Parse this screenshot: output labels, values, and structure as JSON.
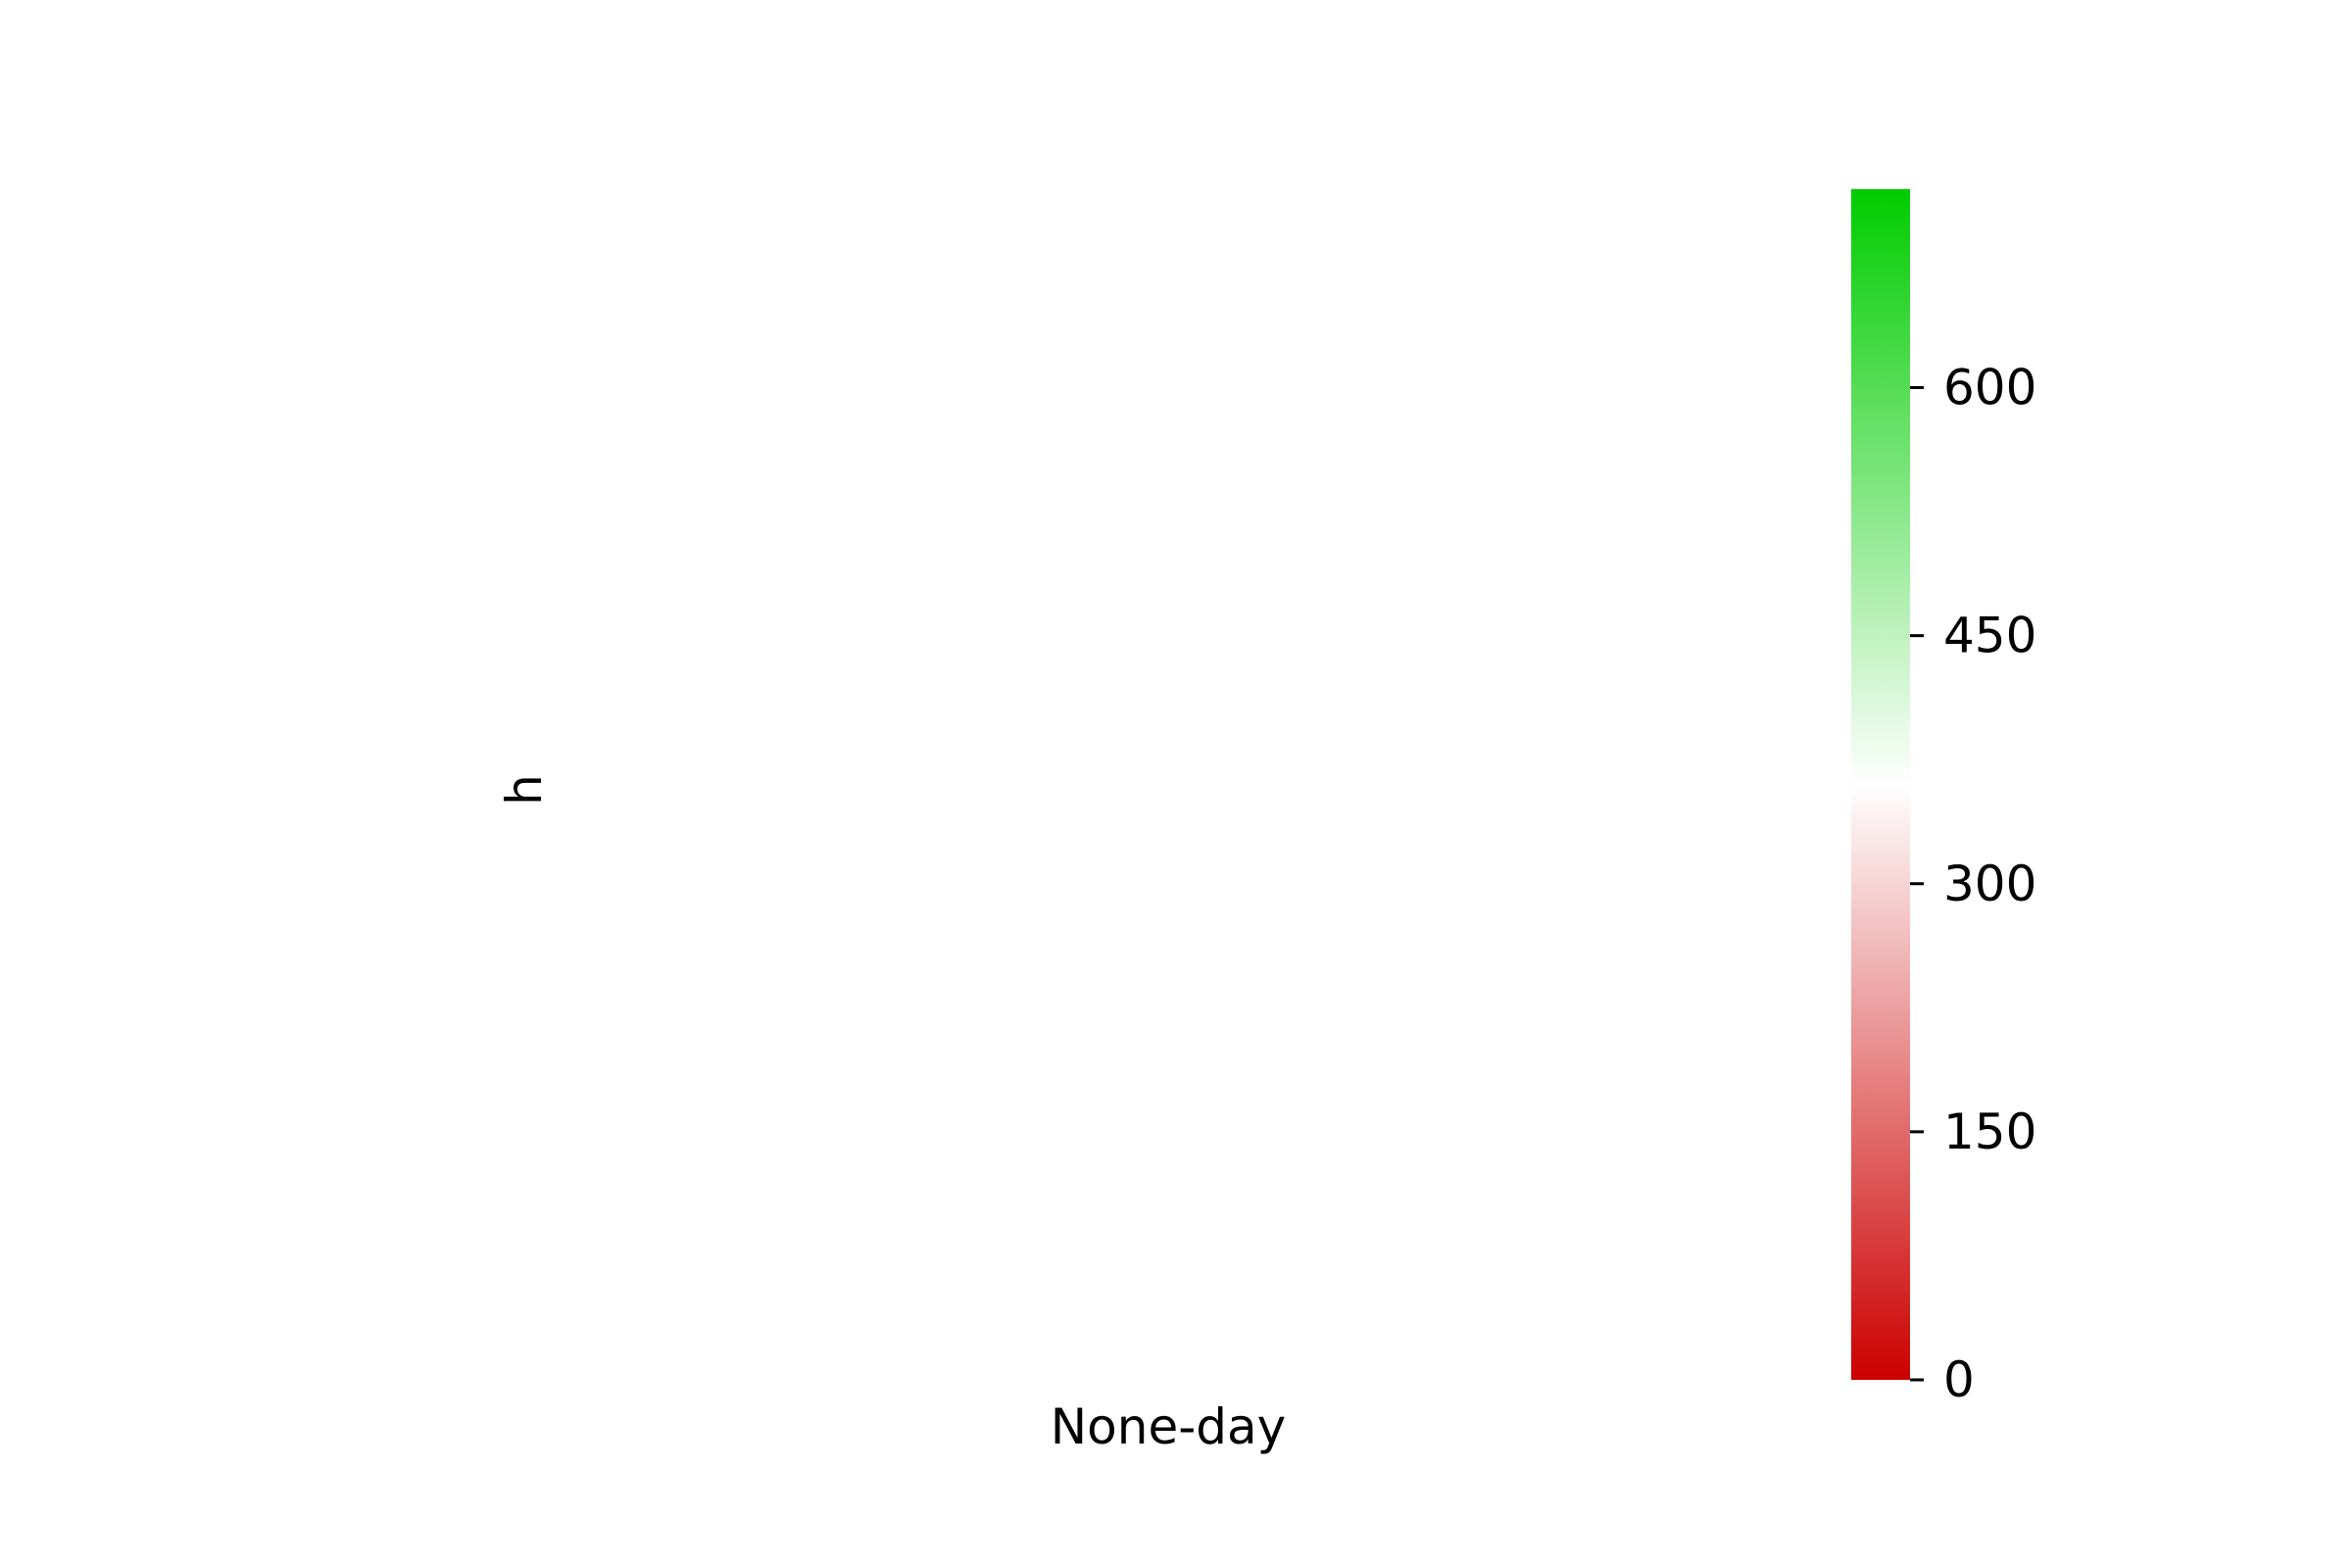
{
  "chart_data": {
    "type": "heatmap",
    "title": "",
    "xlabel": "None-day",
    "ylabel": "h",
    "rows": [],
    "columns": [],
    "values": [],
    "grid": false,
    "colorbar": {
      "range": [
        0,
        720
      ],
      "ticks": [
        0,
        150,
        300,
        450,
        600
      ],
      "tick_labels": [
        "0",
        "150",
        "300",
        "450",
        "600"
      ],
      "colors": [
        {
          "value": 0,
          "color": "#cc0000"
        },
        {
          "value": 360,
          "color": "#ffffff"
        },
        {
          "value": 720,
          "color": "#00cc00"
        }
      ],
      "placement": "right"
    }
  }
}
